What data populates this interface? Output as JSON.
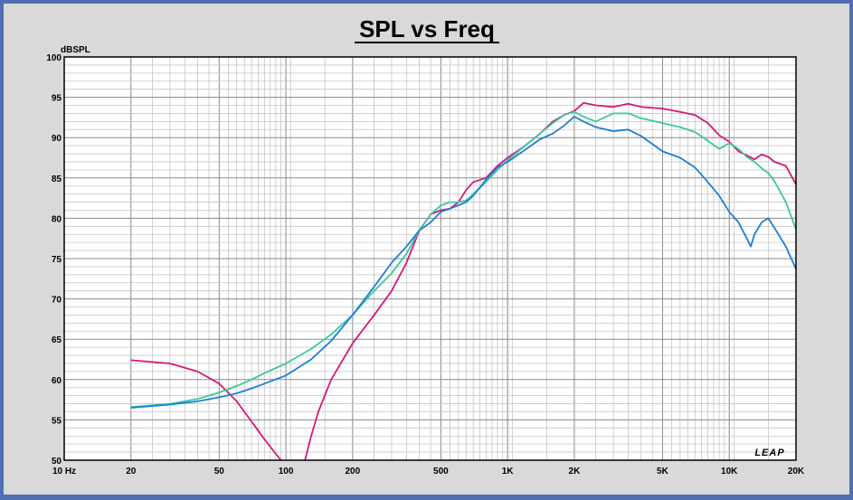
{
  "chart_data": {
    "type": "line",
    "title": "SPL vs Freq",
    "ylabel": "dBSPL",
    "xlabel": "",
    "x_scale": "log",
    "xlim": [
      10,
      20000
    ],
    "ylim": [
      50,
      100
    ],
    "grid": true,
    "legend": "none",
    "watermark": "LEAP",
    "x_ticks": [
      {
        "value": 10,
        "label": "10 Hz"
      },
      {
        "value": 20,
        "label": "20"
      },
      {
        "value": 50,
        "label": "50"
      },
      {
        "value": 100,
        "label": "100"
      },
      {
        "value": 200,
        "label": "200"
      },
      {
        "value": 500,
        "label": "500"
      },
      {
        "value": 1000,
        "label": "1K"
      },
      {
        "value": 2000,
        "label": "2K"
      },
      {
        "value": 5000,
        "label": "5K"
      },
      {
        "value": 10000,
        "label": "10K"
      },
      {
        "value": 20000,
        "label": "20K"
      }
    ],
    "y_ticks": [
      {
        "value": 100,
        "label": "100"
      },
      {
        "value": 95,
        "label": "95"
      },
      {
        "value": 90,
        "label": "90"
      },
      {
        "value": 85,
        "label": "85"
      },
      {
        "value": 80,
        "label": "80"
      },
      {
        "value": 75,
        "label": "75"
      },
      {
        "value": 70,
        "label": "70"
      },
      {
        "value": 65,
        "label": "65"
      },
      {
        "value": 60,
        "label": "60"
      },
      {
        "value": 55,
        "label": "55"
      },
      {
        "value": 50,
        "label": "50"
      }
    ],
    "series": [
      {
        "color": "#d6197a",
        "segments": [
          [
            [
              20,
              62.4
            ],
            [
              30,
              62.0
            ],
            [
              40,
              61.0
            ],
            [
              50,
              59.5
            ],
            [
              60,
              57.3
            ],
            [
              70,
              54.8
            ],
            [
              80,
              52.6
            ],
            [
              90,
              50.8
            ],
            [
              95,
              50.0
            ]
          ],
          [
            [
              122,
              50.0
            ],
            [
              130,
              53.0
            ],
            [
              140,
              56.0
            ],
            [
              160,
              60.0
            ],
            [
              200,
              64.5
            ],
            [
              250,
              68.0
            ],
            [
              300,
              71.0
            ],
            [
              350,
              74.5
            ],
            [
              400,
              78.5
            ],
            [
              450,
              80.5
            ],
            [
              500,
              81.0
            ],
            [
              550,
              81.2
            ],
            [
              600,
              82.0
            ],
            [
              650,
              83.5
            ],
            [
              700,
              84.5
            ],
            [
              800,
              85.0
            ],
            [
              900,
              86.5
            ],
            [
              1000,
              87.5
            ],
            [
              1200,
              89.0
            ],
            [
              1400,
              90.5
            ],
            [
              1600,
              92.0
            ],
            [
              1800,
              92.8
            ],
            [
              2000,
              93.3
            ],
            [
              2200,
              94.3
            ],
            [
              2500,
              94.0
            ],
            [
              3000,
              93.8
            ],
            [
              3500,
              94.2
            ],
            [
              4000,
              93.8
            ],
            [
              5000,
              93.6
            ],
            [
              6000,
              93.2
            ],
            [
              7000,
              92.8
            ],
            [
              8000,
              91.8
            ],
            [
              9000,
              90.3
            ],
            [
              10000,
              89.5
            ],
            [
              11000,
              88.3
            ],
            [
              12000,
              87.8
            ],
            [
              13000,
              87.3
            ],
            [
              14000,
              87.9
            ],
            [
              15000,
              87.6
            ],
            [
              16000,
              87.0
            ],
            [
              18000,
              86.5
            ],
            [
              20000,
              84.2
            ]
          ]
        ]
      },
      {
        "color": "#3cc8a0",
        "segments": [
          [
            [
              20,
              56.6
            ],
            [
              30,
              57.0
            ],
            [
              40,
              57.6
            ],
            [
              50,
              58.4
            ],
            [
              60,
              59.2
            ],
            [
              70,
              60.0
            ],
            [
              80,
              60.8
            ],
            [
              100,
              62.0
            ],
            [
              130,
              63.8
            ],
            [
              160,
              65.6
            ],
            [
              200,
              68.0
            ],
            [
              250,
              71.0
            ],
            [
              300,
              73.2
            ],
            [
              350,
              75.6
            ],
            [
              400,
              78.5
            ],
            [
              450,
              80.5
            ],
            [
              500,
              81.6
            ],
            [
              550,
              82.0
            ],
            [
              600,
              82.0
            ],
            [
              650,
              82.2
            ],
            [
              700,
              83.0
            ],
            [
              800,
              84.5
            ],
            [
              900,
              86.0
            ],
            [
              1000,
              87.2
            ],
            [
              1200,
              89.0
            ],
            [
              1400,
              90.5
            ],
            [
              1600,
              91.8
            ],
            [
              1800,
              92.8
            ],
            [
              2000,
              93.2
            ],
            [
              2200,
              92.6
            ],
            [
              2500,
              92.0
            ],
            [
              3000,
              93.0
            ],
            [
              3500,
              93.0
            ],
            [
              4000,
              92.4
            ],
            [
              5000,
              91.8
            ],
            [
              6000,
              91.3
            ],
            [
              7000,
              90.7
            ],
            [
              8000,
              89.6
            ],
            [
              9000,
              88.6
            ],
            [
              10000,
              89.3
            ],
            [
              11000,
              88.6
            ],
            [
              12000,
              87.6
            ],
            [
              13000,
              87.0
            ],
            [
              14000,
              86.2
            ],
            [
              15000,
              85.6
            ],
            [
              16000,
              84.6
            ],
            [
              18000,
              82.0
            ],
            [
              20000,
              78.6
            ]
          ]
        ]
      },
      {
        "color": "#1e7fd6",
        "segments": [
          [
            [
              20,
              56.5
            ],
            [
              30,
              56.9
            ],
            [
              40,
              57.3
            ],
            [
              50,
              57.8
            ],
            [
              60,
              58.3
            ],
            [
              70,
              58.9
            ],
            [
              80,
              59.5
            ],
            [
              100,
              60.5
            ],
            [
              130,
              62.5
            ],
            [
              160,
              64.8
            ],
            [
              200,
              68.0
            ],
            [
              250,
              71.5
            ],
            [
              300,
              74.5
            ],
            [
              350,
              76.5
            ],
            [
              400,
              78.5
            ],
            [
              450,
              79.5
            ],
            [
              500,
              80.8
            ],
            [
              550,
              81.2
            ],
            [
              600,
              81.6
            ],
            [
              650,
              82.0
            ],
            [
              700,
              82.8
            ],
            [
              800,
              84.8
            ],
            [
              900,
              86.3
            ],
            [
              1000,
              87.0
            ],
            [
              1200,
              88.5
            ],
            [
              1400,
              89.8
            ],
            [
              1600,
              90.5
            ],
            [
              1800,
              91.5
            ],
            [
              2000,
              92.6
            ],
            [
              2200,
              92.0
            ],
            [
              2500,
              91.3
            ],
            [
              3000,
              90.8
            ],
            [
              3500,
              91.0
            ],
            [
              4000,
              90.2
            ],
            [
              5000,
              88.3
            ],
            [
              6000,
              87.5
            ],
            [
              7000,
              86.3
            ],
            [
              8000,
              84.5
            ],
            [
              9000,
              82.8
            ],
            [
              10000,
              80.8
            ],
            [
              11000,
              79.5
            ],
            [
              12000,
              77.5
            ],
            [
              12500,
              76.5
            ],
            [
              13000,
              78.0
            ],
            [
              14000,
              79.5
            ],
            [
              15000,
              80.0
            ],
            [
              16000,
              78.8
            ],
            [
              18000,
              76.5
            ],
            [
              20000,
              73.7
            ]
          ]
        ]
      }
    ]
  }
}
